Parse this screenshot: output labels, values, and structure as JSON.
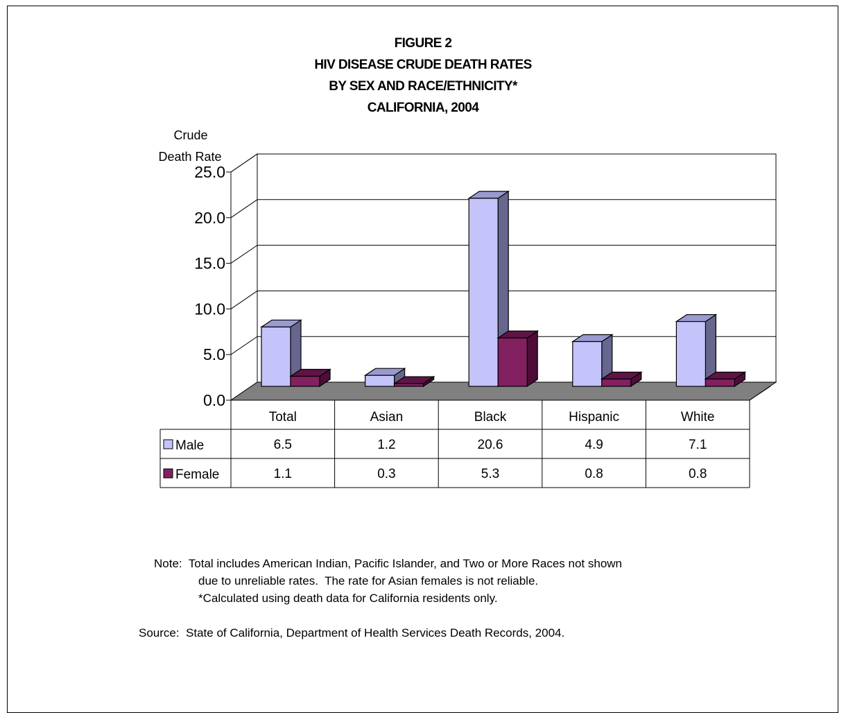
{
  "chart_data": {
    "type": "bar",
    "title_lines": [
      "FIGURE 2",
      "HIV DISEASE CRUDE DEATH RATES",
      "BY SEX AND RACE/ETHNICITY*",
      "CALIFORNIA, 2004"
    ],
    "ylabel_lines": [
      "Crude",
      "Death Rate"
    ],
    "xlabel": "",
    "ylim": [
      0,
      25
    ],
    "yticks": [
      "0.0",
      "5.0",
      "10.0",
      "15.0",
      "20.0",
      "25.0"
    ],
    "grid": true,
    "legend": "data-table",
    "categories": [
      "Total",
      "Asian",
      "Black",
      "Hispanic",
      "White"
    ],
    "series": [
      {
        "name": "Male",
        "values": [
          6.5,
          1.2,
          20.6,
          4.9,
          7.1
        ],
        "labels": [
          "6.5",
          "1.2",
          "20.6",
          "4.9",
          "7.1"
        ],
        "color": "#c4c4fa",
        "side_color": "#66668f",
        "top_color": "#9a9ad0"
      },
      {
        "name": "Female",
        "values": [
          1.1,
          0.3,
          5.3,
          0.8,
          0.8
        ],
        "labels": [
          "1.1",
          "0.3",
          "5.3",
          "0.8",
          "0.8"
        ],
        "color": "#832060",
        "side_color": "#4d0d38",
        "top_color": "#5e1546"
      }
    ]
  },
  "notes": {
    "line1": "Note:  Total includes American Indian, Pacific Islander, and Two or More Races not shown",
    "line2": "due to unreliable rates.  The rate for Asian females is not reliable.",
    "line3": "*Calculated using death data for California residents only.",
    "source": "Source:  State of California, Department of Health Services Death Records, 2004."
  }
}
